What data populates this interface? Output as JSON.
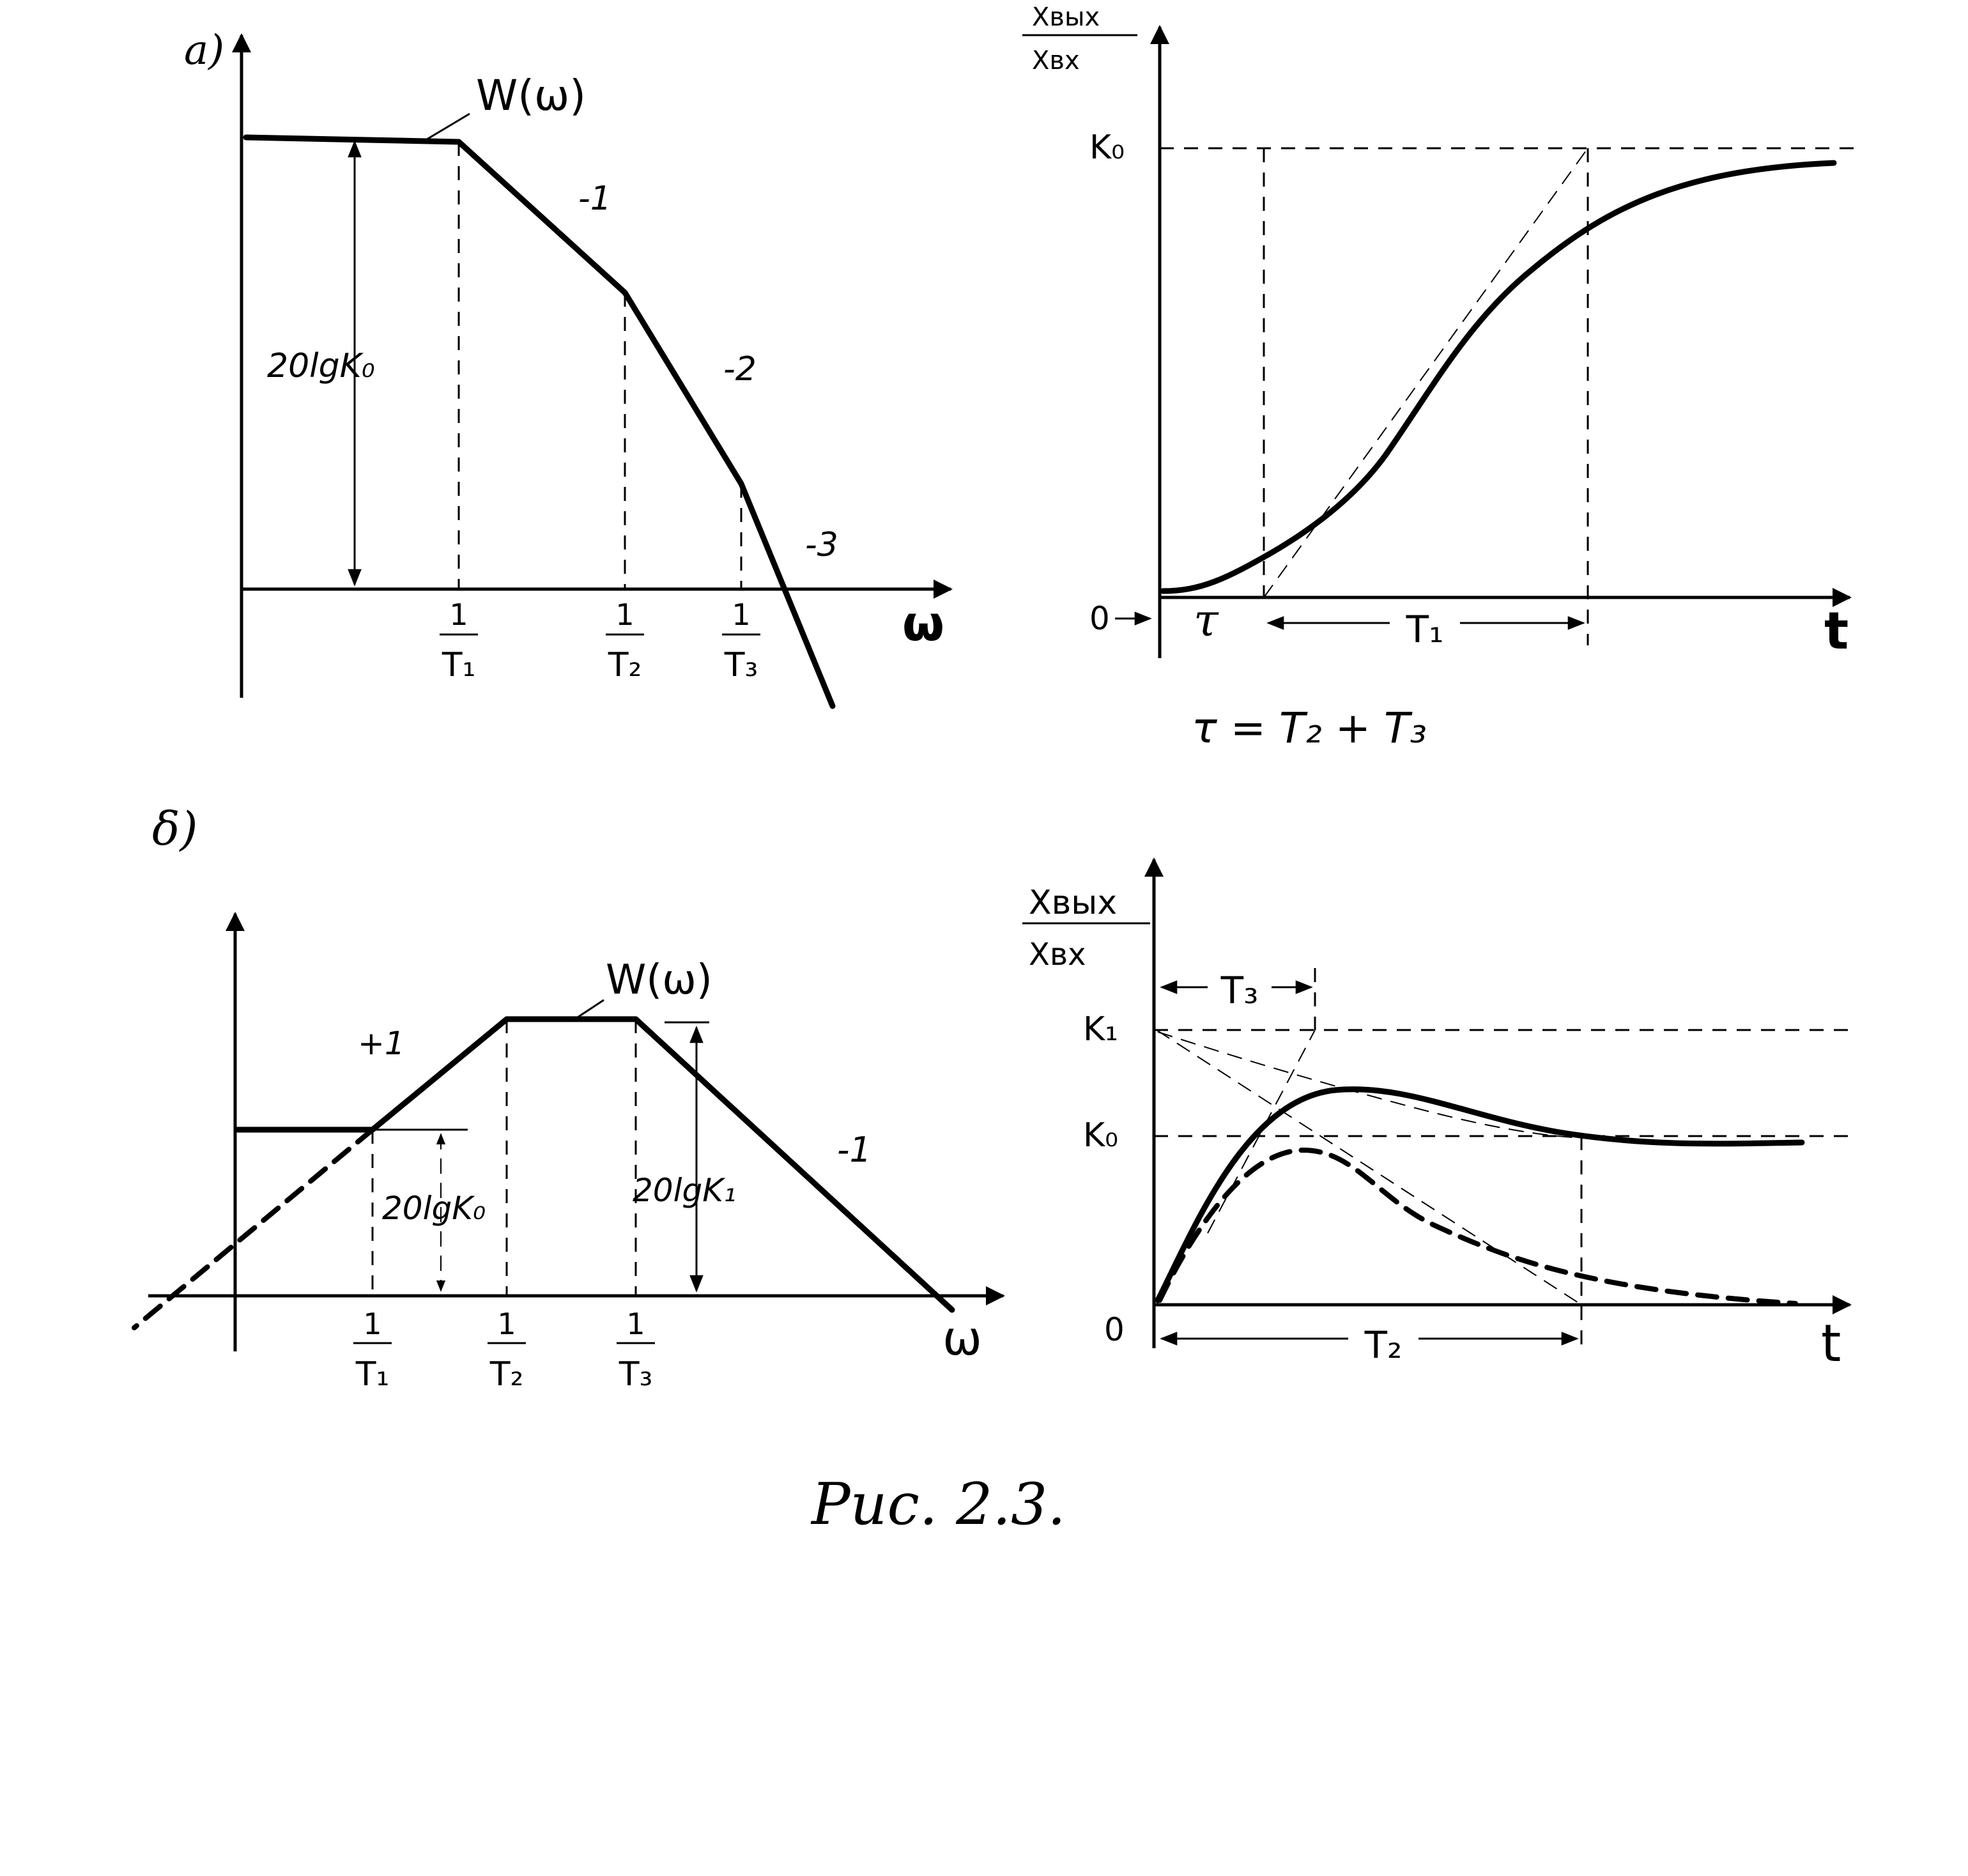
{
  "panel_a": {
    "marker": "a)",
    "lafc": {
      "curve_label": "W(ω)",
      "slope_labels": [
        "-1",
        "-2",
        "-3"
      ],
      "gain_label": "20lgK₀",
      "x_axis_label": "ω",
      "ticks": [
        {
          "num": "1",
          "den": "T₁"
        },
        {
          "num": "1",
          "den": "T₂"
        },
        {
          "num": "1",
          "den": "T₃"
        }
      ]
    },
    "step": {
      "y_label_num": "Xвых",
      "y_label_den": "Xвх",
      "level_label": "K₀",
      "origin_label": "0",
      "delay_label": "τ",
      "time_const_label": "T₁",
      "x_axis_label": "t",
      "formula": "τ = T₂ + T₃"
    }
  },
  "panel_b": {
    "marker": "δ)",
    "lafc": {
      "curve_label": "W(ω)",
      "slope_left": "+1",
      "slope_right": "-1",
      "gain0_label": "20lgK₀",
      "gain1_label": "20lgK₁",
      "x_axis_label": "ω",
      "ticks": [
        {
          "num": "1",
          "den": "T₁"
        },
        {
          "num": "1",
          "den": "T₂"
        },
        {
          "num": "1",
          "den": "T₃"
        }
      ]
    },
    "step": {
      "y_label_num": "Xвых",
      "y_label_den": "Xвх",
      "k1_label": "K₁",
      "k0_label": "K₀",
      "origin_label": "0",
      "t3_label": "T₃",
      "t2_label": "T₂",
      "x_axis_label": "t"
    }
  },
  "caption": "Рис. 2.3."
}
